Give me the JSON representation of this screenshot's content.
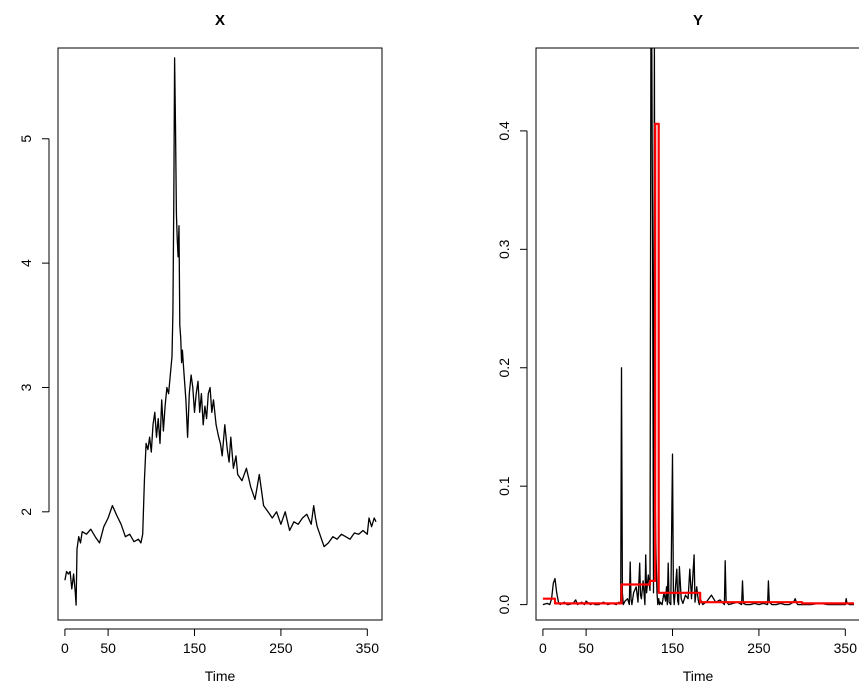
{
  "chart_data": [
    {
      "type": "line",
      "title": "X",
      "xlabel": "Time",
      "ylabel": "",
      "xlim": [
        -8,
        367
      ],
      "ylim": [
        1.13,
        5.73
      ],
      "x_ticks": [
        0,
        50,
        150,
        250,
        350
      ],
      "y_ticks": [
        2,
        3,
        4,
        5
      ],
      "series": [
        {
          "color": "#000000",
          "x": [
            0,
            2,
            4,
            6,
            8,
            10,
            12,
            13,
            14,
            16,
            18,
            20,
            25,
            30,
            35,
            40,
            45,
            50,
            55,
            60,
            65,
            70,
            75,
            80,
            85,
            88,
            90,
            92,
            94,
            96,
            98,
            100,
            102,
            104,
            106,
            108,
            110,
            112,
            114,
            116,
            118,
            120,
            122,
            124,
            125,
            126,
            127,
            128,
            129,
            130,
            131,
            132,
            133,
            134,
            135,
            136,
            138,
            140,
            142,
            144,
            146,
            148,
            150,
            152,
            154,
            156,
            158,
            160,
            162,
            164,
            166,
            168,
            170,
            172,
            175,
            178,
            180,
            182,
            185,
            188,
            190,
            192,
            195,
            198,
            200,
            205,
            210,
            215,
            220,
            225,
            230,
            235,
            240,
            245,
            250,
            255,
            260,
            265,
            270,
            275,
            280,
            285,
            288,
            290,
            292,
            295,
            300,
            305,
            310,
            315,
            320,
            325,
            330,
            335,
            340,
            345,
            350,
            352,
            355,
            358,
            360
          ],
          "y": [
            1.45,
            1.52,
            1.5,
            1.52,
            1.38,
            1.5,
            1.35,
            1.25,
            1.7,
            1.8,
            1.75,
            1.84,
            1.82,
            1.86,
            1.8,
            1.75,
            1.88,
            1.95,
            2.05,
            1.97,
            1.9,
            1.8,
            1.82,
            1.76,
            1.78,
            1.75,
            1.82,
            2.25,
            2.55,
            2.5,
            2.6,
            2.48,
            2.7,
            2.8,
            2.6,
            2.75,
            2.55,
            2.9,
            2.65,
            2.85,
            3.0,
            2.95,
            3.1,
            3.25,
            3.6,
            4.5,
            5.65,
            5.1,
            4.4,
            4.2,
            4.05,
            4.3,
            3.5,
            3.4,
            3.2,
            3.3,
            3.1,
            2.9,
            2.6,
            2.95,
            3.1,
            3.0,
            2.8,
            2.95,
            3.05,
            2.8,
            2.95,
            2.7,
            2.85,
            2.75,
            2.95,
            3.0,
            2.8,
            2.9,
            2.7,
            2.6,
            2.55,
            2.45,
            2.7,
            2.5,
            2.4,
            2.6,
            2.35,
            2.45,
            2.3,
            2.25,
            2.35,
            2.2,
            2.1,
            2.3,
            2.05,
            2.0,
            1.95,
            2.0,
            1.9,
            2.0,
            1.85,
            1.92,
            1.9,
            1.95,
            1.98,
            1.9,
            2.05,
            1.95,
            1.88,
            1.82,
            1.72,
            1.75,
            1.8,
            1.78,
            1.82,
            1.8,
            1.78,
            1.83,
            1.82,
            1.85,
            1.82,
            1.95,
            1.88,
            1.95,
            1.92
          ]
        }
      ]
    },
    {
      "type": "line",
      "title": "Y",
      "xlabel": "Time",
      "ylabel": "",
      "xlim": [
        -8,
        367
      ],
      "ylim": [
        -0.013,
        0.47
      ],
      "x_ticks": [
        0,
        50,
        150,
        250,
        350
      ],
      "y_ticks": [
        0.0,
        0.1,
        0.2,
        0.3,
        0.4
      ],
      "y_tick_labels": [
        "0.0",
        "0.1",
        "0.2",
        "0.3",
        "0.4"
      ],
      "series": [
        {
          "color": "#000000",
          "x": [
            0,
            5,
            8,
            10,
            12,
            14,
            16,
            18,
            20,
            22,
            25,
            28,
            30,
            35,
            38,
            40,
            45,
            48,
            50,
            55,
            58,
            60,
            65,
            70,
            75,
            80,
            85,
            88,
            90,
            91,
            92,
            93,
            95,
            98,
            100,
            101,
            102,
            103,
            105,
            108,
            110,
            112,
            113,
            114,
            116,
            118,
            119,
            120,
            122,
            124,
            125,
            126,
            127,
            128,
            129,
            130,
            131,
            132,
            133,
            134,
            135,
            136,
            138,
            140,
            142,
            143,
            144,
            145,
            146,
            148,
            150,
            151,
            152,
            155,
            156,
            157,
            158,
            160,
            162,
            165,
            168,
            170,
            172,
            175,
            176,
            178,
            180,
            181,
            182,
            185,
            190,
            195,
            200,
            205,
            210,
            211,
            212,
            215,
            220,
            225,
            230,
            231,
            232,
            235,
            240,
            245,
            250,
            255,
            260,
            261,
            262,
            265,
            270,
            275,
            280,
            285,
            290,
            292,
            294,
            295,
            300,
            310,
            320,
            330,
            340,
            350,
            351,
            352,
            355,
            360
          ],
          "y": [
            0.0,
            0.001,
            0.0,
            0.005,
            0.018,
            0.022,
            0.01,
            0.002,
            0.0,
            0.001,
            0.002,
            0.0,
            0.0,
            0.001,
            0.004,
            0.0,
            0.002,
            0.0,
            0.003,
            0.0,
            0.001,
            0.0,
            0.0,
            0.002,
            0.0,
            0.001,
            0.0,
            0.002,
            0.001,
            0.2,
            0.01,
            0.0,
            0.003,
            0.005,
            0.0,
            0.036,
            0.005,
            0.0,
            0.01,
            0.015,
            0.002,
            0.035,
            0.008,
            0.005,
            0.02,
            0.0,
            0.042,
            0.01,
            0.025,
            0.012,
            0.47,
            0.47,
            0.3,
            0.01,
            0.47,
            0.09,
            0.04,
            0.01,
            0.0,
            0.005,
            0.0,
            0.002,
            0.0,
            0.01,
            0.003,
            0.015,
            0.0,
            0.035,
            0.002,
            0.0,
            0.127,
            0.01,
            0.0,
            0.03,
            0.003,
            0.0,
            0.032,
            0.005,
            0.001,
            0.008,
            0.005,
            0.03,
            0.005,
            0.042,
            0.002,
            0.015,
            0.003,
            0.0,
            0.005,
            0.0,
            0.003,
            0.008,
            0.002,
            0.004,
            0.0,
            0.037,
            0.003,
            0.0,
            0.001,
            0.002,
            0.0,
            0.02,
            0.001,
            0.0,
            0.0,
            0.001,
            0.0,
            0.001,
            0.0,
            0.02,
            0.002,
            0.0,
            0.0,
            0.001,
            0.0,
            0.0,
            0.002,
            0.005,
            0.001,
            0.0,
            0.0,
            0.0,
            0.001,
            0.0,
            0.0,
            0.0,
            0.005,
            0.001,
            0.0,
            0.0
          ]
        },
        {
          "color": "#ff0000",
          "step": true,
          "x": [
            0,
            14,
            14,
            91,
            91,
            124,
            124,
            130,
            130,
            134,
            134,
            182,
            182,
            300,
            300,
            360
          ],
          "y": [
            0.005,
            0.005,
            0.001,
            0.001,
            0.017,
            0.017,
            0.02,
            0.02,
            0.406,
            0.406,
            0.01,
            0.01,
            0.002,
            0.002,
            0.001,
            0.001
          ]
        }
      ]
    }
  ]
}
